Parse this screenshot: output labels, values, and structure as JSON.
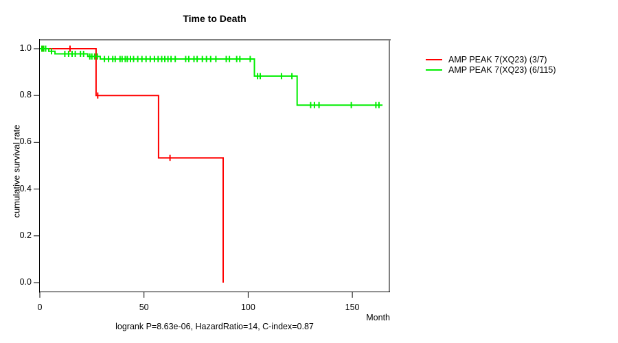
{
  "title": "Time to Death",
  "footer": "logrank P=8.63e-06, HazardRatio=14, C-index=0.87",
  "axes": {
    "x": {
      "label": "Month",
      "ticks": [
        0,
        50,
        100,
        150
      ]
    },
    "y": {
      "label": "cumulative survival rate",
      "ticks": [
        "0.0",
        "0.2",
        "0.4",
        "0.6",
        "0.8",
        "1.0"
      ]
    }
  },
  "legend": [
    {
      "label": "AMP PEAK 7(XQ23) (3/7)",
      "color": "#ff0000"
    },
    {
      "label": "AMP PEAK 7(XQ23) (6/115)",
      "color": "#00ee00"
    }
  ],
  "colors": {
    "box_border": "#808080",
    "axis": "#000000",
    "red": "#ff0000",
    "green": "#00ee00"
  },
  "chart_data": {
    "type": "line",
    "subtype": "kaplan-meier-step",
    "title": "Time to Death",
    "xlabel": "Month",
    "ylabel": "cumulative survival rate",
    "xlim": [
      0,
      168
    ],
    "ylim": [
      0.0,
      1.0
    ],
    "x_ticks": [
      0,
      50,
      100,
      150
    ],
    "y_ticks": [
      0.0,
      0.2,
      0.4,
      0.6,
      0.8,
      1.0
    ],
    "grid": false,
    "legend_position": "right-outside",
    "annotation": "logrank P=8.63e-06, HazardRatio=14, C-index=0.87",
    "series": [
      {
        "name": "AMP PEAK 7(XQ23) (3/7)",
        "color": "#ff0000",
        "steps": [
          [
            0,
            1.0
          ],
          [
            27,
            0.8
          ],
          [
            57,
            0.533
          ],
          [
            88,
            0.0
          ]
        ],
        "end_month": 88,
        "censors": [
          [
            1.4,
            1.0
          ],
          [
            14.5,
            1.0
          ],
          [
            27.8,
            0.8
          ],
          [
            62.5,
            0.533
          ]
        ]
      },
      {
        "name": "AMP PEAK 7(XQ23) (6/115)",
        "color": "#00ee00",
        "steps": [
          [
            0,
            1.0
          ],
          [
            4.3,
            0.989
          ],
          [
            7.3,
            0.978
          ],
          [
            23,
            0.967
          ],
          [
            29,
            0.956
          ],
          [
            103,
            0.883
          ],
          [
            123.5,
            0.759
          ]
        ],
        "end_month": 164.5,
        "censors": [
          [
            1.0,
            1.0
          ],
          [
            1.8,
            1.0
          ],
          [
            2.8,
            1.0
          ],
          [
            5.6,
            0.989
          ],
          [
            12,
            0.978
          ],
          [
            13.8,
            0.978
          ],
          [
            15.5,
            0.978
          ],
          [
            17,
            0.978
          ],
          [
            19.5,
            0.978
          ],
          [
            21,
            0.978
          ],
          [
            24,
            0.967
          ],
          [
            25,
            0.967
          ],
          [
            26.3,
            0.967
          ],
          [
            27.6,
            0.967
          ],
          [
            31,
            0.956
          ],
          [
            33,
            0.956
          ],
          [
            35,
            0.956
          ],
          [
            36.2,
            0.956
          ],
          [
            38.5,
            0.956
          ],
          [
            39.5,
            0.956
          ],
          [
            41,
            0.956
          ],
          [
            42,
            0.956
          ],
          [
            43.5,
            0.956
          ],
          [
            45,
            0.956
          ],
          [
            47,
            0.956
          ],
          [
            49,
            0.956
          ],
          [
            51,
            0.956
          ],
          [
            53,
            0.956
          ],
          [
            55,
            0.956
          ],
          [
            56.8,
            0.956
          ],
          [
            58.5,
            0.956
          ],
          [
            60,
            0.956
          ],
          [
            61.5,
            0.956
          ],
          [
            63,
            0.956
          ],
          [
            65,
            0.956
          ],
          [
            70,
            0.956
          ],
          [
            71.5,
            0.956
          ],
          [
            74,
            0.956
          ],
          [
            75.5,
            0.956
          ],
          [
            78,
            0.956
          ],
          [
            80,
            0.956
          ],
          [
            82,
            0.956
          ],
          [
            84.5,
            0.956
          ],
          [
            89.5,
            0.956
          ],
          [
            91,
            0.956
          ],
          [
            94.5,
            0.956
          ],
          [
            96,
            0.956
          ],
          [
            101,
            0.956
          ],
          [
            104.5,
            0.883
          ],
          [
            105.8,
            0.883
          ],
          [
            116,
            0.883
          ],
          [
            121,
            0.883
          ],
          [
            130,
            0.759
          ],
          [
            131.8,
            0.759
          ],
          [
            134,
            0.759
          ],
          [
            149.5,
            0.759
          ],
          [
            161.3,
            0.759
          ],
          [
            162.8,
            0.759
          ]
        ]
      }
    ]
  }
}
